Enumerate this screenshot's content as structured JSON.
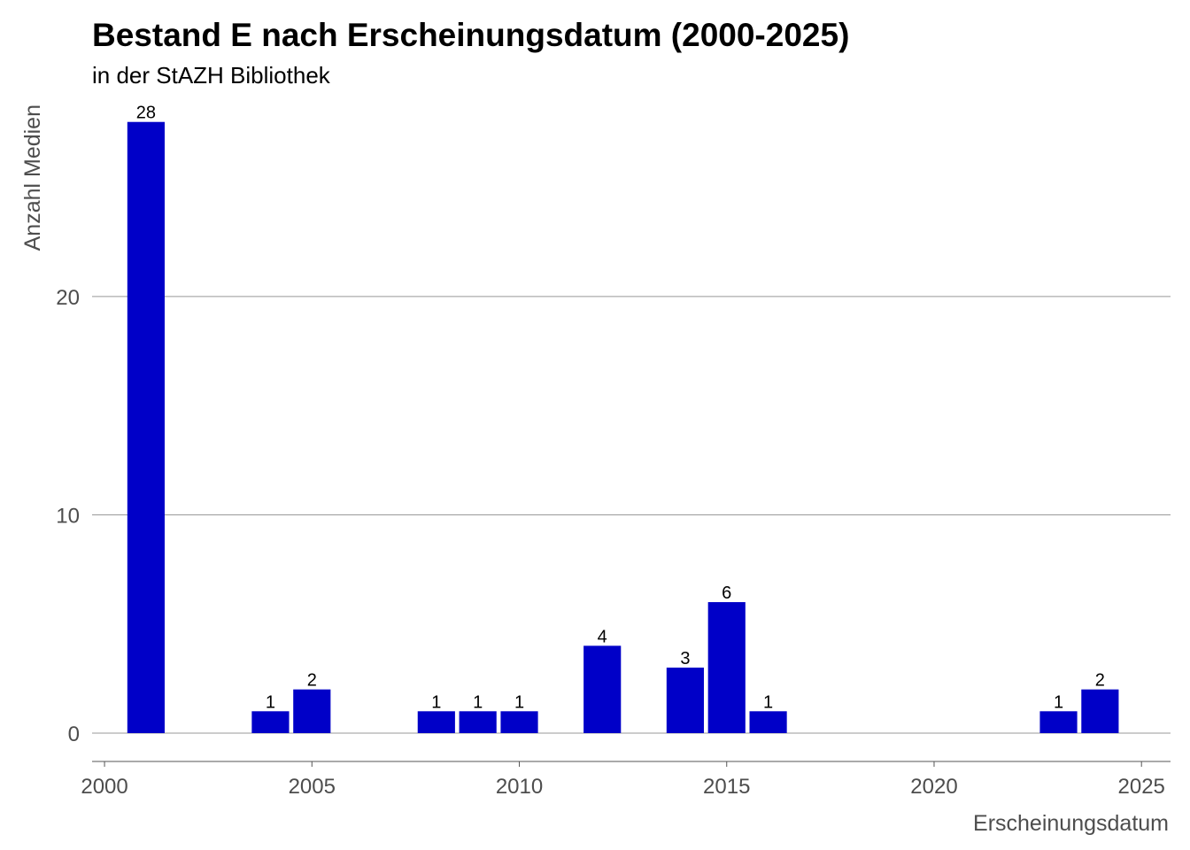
{
  "chart_data": {
    "type": "bar",
    "title": "Bestand E nach Erscheinungsdatum (2000-2025)",
    "subtitle": "in der StAZH Bibliothek",
    "xlabel": "Erscheinungsdatum",
    "ylabel": "Anzahl Medien",
    "x": [
      2001,
      2004,
      2005,
      2008,
      2009,
      2010,
      2012,
      2014,
      2015,
      2016,
      2023,
      2024
    ],
    "values": [
      28,
      1,
      2,
      1,
      1,
      1,
      4,
      3,
      6,
      1,
      1,
      2
    ],
    "xlim": [
      1999.7,
      2025.7
    ],
    "ylim": [
      -1.3,
      28.8
    ],
    "xticks": [
      2000,
      2005,
      2010,
      2015,
      2020,
      2025
    ],
    "yticks": [
      0,
      10,
      20
    ],
    "grid": "horizontal",
    "bar_color": "#0000C8",
    "show_data_labels": true
  }
}
